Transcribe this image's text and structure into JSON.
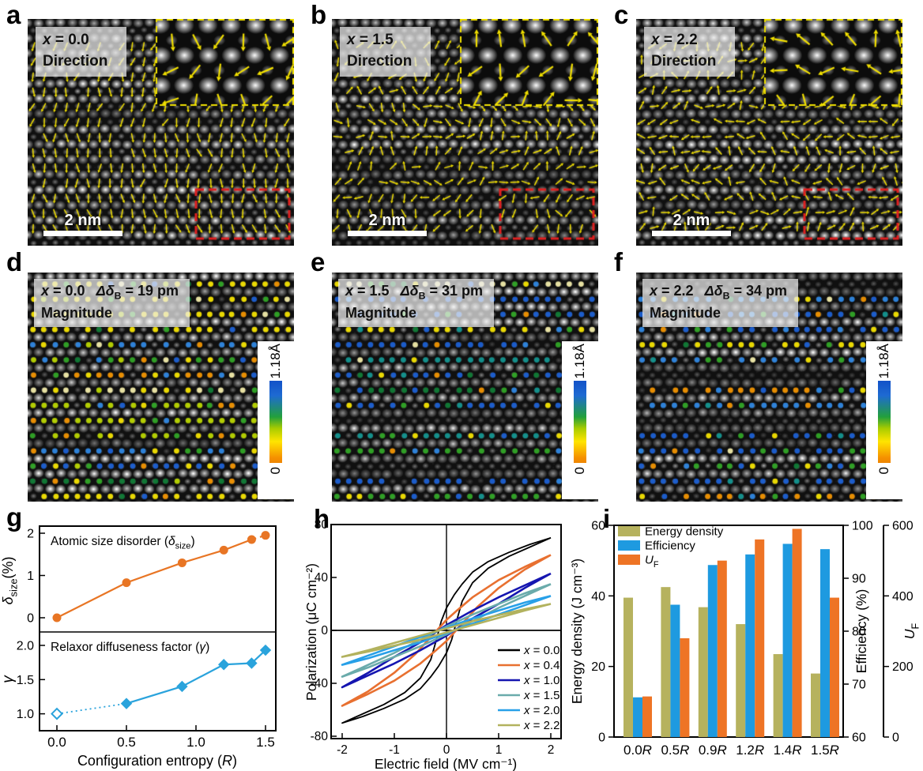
{
  "panels": {
    "a": {
      "letter": "a",
      "x_sym": "x",
      "x_val": "= 0.0",
      "mode": "Direction",
      "scalebar": "2 nm"
    },
    "b": {
      "letter": "b",
      "x_sym": "x",
      "x_val": "= 1.5",
      "mode": "Direction",
      "scalebar": "2 nm"
    },
    "c": {
      "letter": "c",
      "x_sym": "x",
      "x_val": "= 2.2",
      "mode": "Direction",
      "scalebar": "2 nm"
    },
    "d": {
      "letter": "d",
      "x_sym": "x",
      "x_val": "= 0.0",
      "delta_pre": "Δδ",
      "delta_sub": "B",
      "delta_val": "= 19 pm",
      "mode": "Magnitude",
      "cbar_max": "1.18Å",
      "cbar_min": "0"
    },
    "e": {
      "letter": "e",
      "x_sym": "x",
      "x_val": "= 1.5",
      "delta_pre": "Δδ",
      "delta_sub": "B",
      "delta_val": "= 31 pm",
      "mode": "Magnitude",
      "cbar_max": "1.18Å",
      "cbar_min": "0"
    },
    "f": {
      "letter": "f",
      "x_sym": "x",
      "x_val": "= 2.2",
      "delta_pre": "Δδ",
      "delta_sub": "B",
      "delta_val": "= 34 pm",
      "mode": "Magnitude",
      "cbar_max": "1.18Å",
      "cbar_min": "0"
    },
    "g": {
      "letter": "g"
    },
    "h": {
      "letter": "h"
    },
    "i": {
      "letter": "i"
    }
  },
  "chart_data": {
    "g": {
      "type": "line",
      "xlabel": {
        "pre": "Configuration entropy (",
        "sym": "R",
        "post": ")"
      },
      "x_tick_labels": [
        "0.0",
        "0.5",
        "1.0",
        "1.5"
      ],
      "x_tick_vals": [
        0,
        0.5,
        1.0,
        1.5
      ],
      "subplots": [
        {
          "title": {
            "pre": "Atomic size disorder (",
            "sym": "δ",
            "sub": "size",
            "post": ")"
          },
          "ylabel": {
            "sym": "δ",
            "sub": "size",
            "post": "(%)"
          },
          "y_ticks": [
            0,
            1,
            2
          ],
          "x": [
            0,
            0.5,
            0.9,
            1.2,
            1.4,
            1.5
          ],
          "y": [
            0,
            0.83,
            1.3,
            1.6,
            1.85,
            1.95
          ],
          "marker": "circle",
          "color": "#e87524",
          "dash_last_segment": true
        },
        {
          "title": {
            "pre": "Relaxor diffuseness factor (",
            "sym": "γ",
            "post": ")"
          },
          "ylabel": {
            "sym": "γ"
          },
          "y_ticks": [
            1.0,
            1.5,
            2.0
          ],
          "x": [
            0,
            0.5,
            0.9,
            1.2,
            1.4,
            1.5
          ],
          "y": [
            1.0,
            1.15,
            1.4,
            1.72,
            1.74,
            1.93
          ],
          "marker": "diamond",
          "color": "#2aa3dc",
          "open_first_marker": true,
          "dotted_first_segment": true
        }
      ]
    },
    "h": {
      "type": "line",
      "xlabel": "Electric field (MV cm⁻¹)",
      "ylabel": "Polarization (μC cm⁻²)",
      "x_ticks": [
        -2,
        -1,
        0,
        1,
        2
      ],
      "y_ticks": [
        -80,
        -40,
        0,
        40,
        80
      ],
      "xlim": [
        -2.2,
        2.2
      ],
      "ylim": [
        -85,
        85
      ],
      "legend_position": "lower-right",
      "series": [
        {
          "label": {
            "sym": "x",
            "rest": " = 0.0"
          },
          "color": "#000000",
          "branch": [
            [
              2,
              70
            ],
            [
              1.6,
              65
            ],
            [
              1.2,
              59
            ],
            [
              0.8,
              52
            ],
            [
              0.5,
              44
            ],
            [
              0.3,
              35
            ],
            [
              0.15,
              27
            ],
            [
              0,
              17
            ],
            [
              -0.1,
              7
            ],
            [
              -0.2,
              -8
            ],
            [
              -0.3,
              -22
            ],
            [
              -0.5,
              -36
            ],
            [
              -0.8,
              -47
            ],
            [
              -1.2,
              -56
            ],
            [
              -1.6,
              -63
            ],
            [
              -2,
              -70
            ]
          ]
        },
        {
          "label": {
            "sym": "x",
            "rest": " = 0.4"
          },
          "color": "#e87030",
          "branch": [
            [
              2,
              57
            ],
            [
              1.5,
              48
            ],
            [
              1,
              38
            ],
            [
              0.5,
              25
            ],
            [
              0.2,
              15
            ],
            [
              0,
              8
            ],
            [
              -0.3,
              -5
            ],
            [
              -0.6,
              -18
            ],
            [
              -1,
              -32
            ],
            [
              -1.5,
              -46
            ],
            [
              -2,
              -57
            ]
          ]
        },
        {
          "label": {
            "sym": "x",
            "rest": " = 1.0"
          },
          "color": "#1515b0",
          "branch": [
            [
              2,
              43
            ],
            [
              1.5,
              34
            ],
            [
              1,
              25
            ],
            [
              0.5,
              15
            ],
            [
              0,
              4
            ],
            [
              -0.5,
              -9
            ],
            [
              -1,
              -20
            ],
            [
              -1.5,
              -32
            ],
            [
              -2,
              -43
            ]
          ]
        },
        {
          "label": {
            "sym": "x",
            "rest": " = 1.5"
          },
          "color": "#6aabab",
          "branch": [
            [
              2,
              35
            ],
            [
              1.5,
              28
            ],
            [
              1,
              20
            ],
            [
              0.5,
              12
            ],
            [
              0,
              3
            ],
            [
              -0.5,
              -7
            ],
            [
              -1,
              -17
            ],
            [
              -1.5,
              -26
            ],
            [
              -2,
              -35
            ]
          ]
        },
        {
          "label": {
            "sym": "x",
            "rest": " = 2.0"
          },
          "color": "#28a0e8",
          "branch": [
            [
              2,
              26
            ],
            [
              1.5,
              21
            ],
            [
              1,
              15
            ],
            [
              0.5,
              9
            ],
            [
              0,
              2
            ],
            [
              -0.5,
              -5
            ],
            [
              -1,
              -12
            ],
            [
              -1.5,
              -19
            ],
            [
              -2,
              -26
            ]
          ]
        },
        {
          "label": {
            "sym": "x",
            "rest": " = 2.2"
          },
          "color": "#b2b25e",
          "branch": [
            [
              2,
              20
            ],
            [
              1.5,
              16
            ],
            [
              1,
              11.5
            ],
            [
              0.5,
              7
            ],
            [
              0,
              1.5
            ],
            [
              -0.5,
              -4
            ],
            [
              -1,
              -9.5
            ],
            [
              -1.5,
              -15
            ],
            [
              -2,
              -20
            ]
          ]
        }
      ]
    },
    "i": {
      "type": "bar",
      "categories_num": [
        "0.0",
        "0.5",
        "0.9",
        "1.2",
        "1.4",
        "1.5"
      ],
      "category_suffix": "R",
      "series": [
        {
          "name": "Energy density",
          "axis": "left",
          "color": "#b6b25e",
          "values": [
            39.5,
            42.5,
            36.8,
            32,
            23.5,
            18
          ]
        },
        {
          "name": "Efficiency",
          "axis": "right",
          "color": "#1e9ae0",
          "values": [
            67.5,
            85,
            92.5,
            94.5,
            96.5,
            95.5
          ]
        },
        {
          "name": {
            "sym": "U",
            "sub": "F"
          },
          "axis": "far_right",
          "color": "#ee7425",
          "values": [
            115,
            280,
            500,
            560,
            590,
            395
          ]
        }
      ],
      "axes": {
        "left": {
          "label": "Energy density (J cm⁻³)",
          "ticks": [
            0,
            20,
            40,
            60
          ],
          "range": [
            0,
            60
          ]
        },
        "right": {
          "label": "Efficiency (%)",
          "ticks": [
            60,
            70,
            80,
            90,
            100
          ],
          "range": [
            60,
            100
          ]
        },
        "far_right": {
          "label": {
            "sym": "U",
            "sub": "F"
          },
          "ticks": [
            0,
            200,
            400,
            600
          ],
          "range": [
            0,
            600
          ]
        }
      }
    }
  }
}
